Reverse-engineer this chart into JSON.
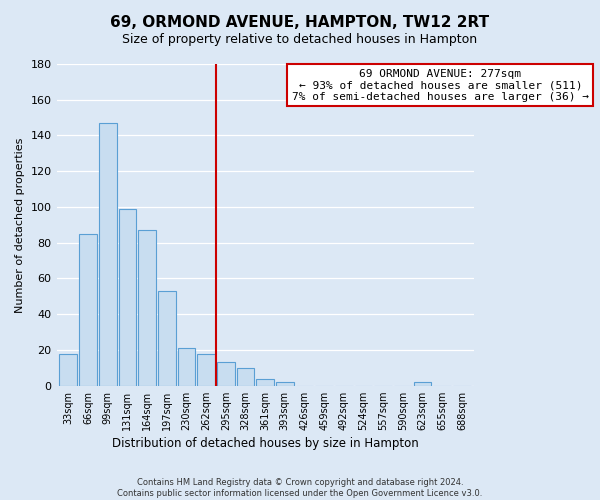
{
  "title": "69, ORMOND AVENUE, HAMPTON, TW12 2RT",
  "subtitle": "Size of property relative to detached houses in Hampton",
  "xlabel": "Distribution of detached houses by size in Hampton",
  "ylabel": "Number of detached properties",
  "bar_color": "#c8ddf0",
  "bar_edge_color": "#5a9fd4",
  "bin_labels": [
    "33sqm",
    "66sqm",
    "99sqm",
    "131sqm",
    "164sqm",
    "197sqm",
    "230sqm",
    "262sqm",
    "295sqm",
    "328sqm",
    "361sqm",
    "393sqm",
    "426sqm",
    "459sqm",
    "492sqm",
    "524sqm",
    "557sqm",
    "590sqm",
    "623sqm",
    "655sqm",
    "688sqm"
  ],
  "bar_values": [
    18,
    85,
    147,
    99,
    87,
    53,
    21,
    18,
    13,
    10,
    4,
    2,
    0,
    0,
    0,
    0,
    0,
    0,
    2,
    0,
    0
  ],
  "vline_pos": 7.5,
  "vline_color": "#cc0000",
  "annotation_line1": "69 ORMOND AVENUE: 277sqm",
  "annotation_line2": "← 93% of detached houses are smaller (511)",
  "annotation_line3": "7% of semi-detached houses are larger (36) →",
  "annotation_box_color": "#ffffff",
  "annotation_box_edge_color": "#cc0000",
  "ylim": [
    0,
    180
  ],
  "yticks": [
    0,
    20,
    40,
    60,
    80,
    100,
    120,
    140,
    160,
    180
  ],
  "footer_line1": "Contains HM Land Registry data © Crown copyright and database right 2024.",
  "footer_line2": "Contains public sector information licensed under the Open Government Licence v3.0.",
  "bg_color": "#dce8f5",
  "plot_bg_color": "#dce8f5",
  "title_fontsize": 11,
  "subtitle_fontsize": 9
}
